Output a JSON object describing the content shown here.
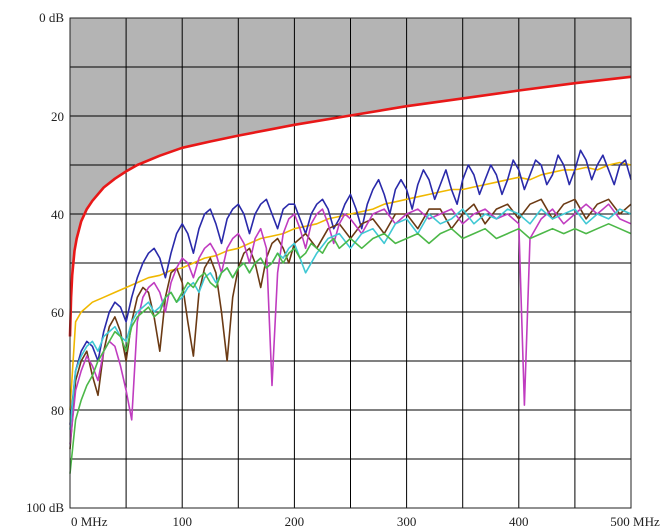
{
  "chart_data": {
    "type": "line",
    "title": "",
    "xlabel": "",
    "ylabel": "",
    "xlim": [
      0,
      500
    ],
    "ylim": [
      0,
      100
    ],
    "y_inverted": true,
    "grid": true,
    "x_ticks": [
      {
        "value": 0,
        "label": "0 MHz"
      },
      {
        "value": 100,
        "label": "100"
      },
      {
        "value": 200,
        "label": "200"
      },
      {
        "value": 300,
        "label": "300"
      },
      {
        "value": 400,
        "label": "400"
      },
      {
        "value": 500,
        "label": "500 MHz"
      }
    ],
    "y_ticks": [
      {
        "value": 0,
        "label": "0 dB"
      },
      {
        "value": 20,
        "label": "20"
      },
      {
        "value": 40,
        "label": "40"
      },
      {
        "value": 60,
        "label": "60"
      },
      {
        "value": 80,
        "label": "80"
      },
      {
        "value": 100,
        "label": "100 dB"
      }
    ],
    "limit_curve": {
      "color": "#e81818",
      "fill_color": "#b4b4b4",
      "x": [
        0,
        1,
        2,
        4,
        6,
        10,
        15,
        20,
        30,
        40,
        50,
        60,
        80,
        100,
        125,
        150,
        175,
        200,
        250,
        300,
        350,
        400,
        450,
        500
      ],
      "y": [
        65,
        57,
        52.5,
        47.5,
        45,
        41.5,
        39,
        37.3,
        34.6,
        32.8,
        31.3,
        30,
        28.1,
        26.5,
        25.2,
        24,
        22.9,
        21.8,
        19.9,
        18,
        16.4,
        14.8,
        13.3,
        12
      ]
    },
    "series": [
      {
        "color": "#f0b800",
        "x": [
          0,
          5,
          10,
          20,
          30,
          40,
          50,
          60,
          70,
          80,
          90,
          100,
          110,
          120,
          130,
          140,
          150,
          160,
          170,
          180,
          190,
          200,
          210,
          220,
          230,
          240,
          250,
          260,
          270,
          280,
          290,
          300,
          310,
          320,
          330,
          340,
          350,
          360,
          370,
          380,
          390,
          400,
          410,
          420,
          430,
          440,
          450,
          460,
          470,
          480,
          490,
          500
        ],
        "y": [
          80,
          62,
          60,
          58,
          57,
          56,
          55,
          54,
          53,
          52.5,
          51.5,
          51,
          50,
          49,
          48.5,
          47.5,
          47,
          46,
          45,
          44.5,
          44,
          43,
          42.5,
          42,
          41,
          40.5,
          40,
          39.5,
          39,
          38,
          37.5,
          37,
          36.5,
          36,
          35.5,
          35,
          35,
          34.5,
          34,
          33.5,
          33,
          32.5,
          33,
          32,
          31.5,
          31,
          31,
          30.5,
          31,
          30,
          29.5,
          30
        ]
      },
      {
        "color": "#2a2aaa",
        "x": [
          0,
          5,
          10,
          15,
          20,
          25,
          30,
          35,
          40,
          45,
          50,
          55,
          60,
          65,
          70,
          75,
          80,
          85,
          90,
          95,
          100,
          105,
          110,
          115,
          120,
          125,
          130,
          135,
          140,
          145,
          150,
          155,
          160,
          165,
          170,
          175,
          180,
          185,
          190,
          195,
          200,
          205,
          210,
          215,
          220,
          225,
          230,
          235,
          240,
          245,
          250,
          255,
          260,
          265,
          270,
          275,
          280,
          285,
          290,
          295,
          300,
          305,
          310,
          315,
          320,
          325,
          330,
          335,
          340,
          345,
          350,
          355,
          360,
          365,
          370,
          375,
          380,
          385,
          390,
          395,
          400,
          405,
          410,
          415,
          420,
          425,
          430,
          435,
          440,
          445,
          450,
          455,
          460,
          465,
          470,
          475,
          480,
          485,
          490,
          495,
          500
        ],
        "y": [
          83,
          72,
          68,
          66,
          67,
          70,
          64,
          60,
          58,
          59,
          62,
          57,
          53,
          50,
          48,
          47,
          49,
          53,
          48,
          44,
          42,
          44,
          48,
          43,
          40,
          39,
          42,
          46,
          41,
          39,
          38,
          40,
          44,
          40,
          38,
          37,
          40,
          43,
          39,
          38,
          38,
          41,
          44,
          40,
          38,
          37,
          39,
          43,
          41,
          38,
          36,
          39,
          43,
          38,
          35,
          33,
          36,
          40,
          35,
          33,
          35,
          39,
          34,
          31,
          33,
          37,
          34,
          31,
          35,
          38,
          33,
          30,
          32,
          36,
          33,
          30,
          32,
          36,
          33,
          29,
          31,
          35,
          32,
          29,
          30,
          34,
          32,
          28,
          30,
          34,
          31,
          27,
          29,
          33,
          30,
          28,
          31,
          34,
          30,
          29,
          33
        ]
      },
      {
        "color": "#6b3a14",
        "x": [
          0,
          5,
          10,
          15,
          20,
          25,
          30,
          35,
          40,
          45,
          50,
          55,
          60,
          65,
          70,
          75,
          80,
          85,
          90,
          95,
          100,
          105,
          110,
          115,
          120,
          125,
          130,
          135,
          140,
          145,
          150,
          155,
          160,
          165,
          170,
          175,
          180,
          185,
          190,
          195,
          200,
          210,
          220,
          230,
          240,
          250,
          260,
          270,
          280,
          290,
          300,
          310,
          320,
          330,
          340,
          350,
          360,
          370,
          380,
          390,
          400,
          410,
          420,
          430,
          440,
          450,
          460,
          470,
          480,
          490,
          500
        ],
        "y": [
          88,
          74,
          70,
          68,
          73,
          77,
          68,
          63,
          61,
          64,
          70,
          62,
          57,
          55,
          56,
          61,
          68,
          57,
          52,
          51,
          54,
          62,
          69,
          56,
          51,
          49,
          52,
          60,
          70,
          57,
          51,
          48,
          47,
          50,
          55,
          49,
          46,
          45,
          47,
          50,
          46,
          44,
          47,
          43,
          42,
          45,
          42,
          41,
          44,
          40,
          40,
          43,
          39,
          39,
          43,
          40,
          38,
          42,
          39,
          38,
          41,
          38,
          37,
          41,
          38,
          37,
          41,
          38,
          37,
          40,
          38
        ]
      },
      {
        "color": "#c03cc0",
        "x": [
          0,
          5,
          10,
          15,
          20,
          25,
          30,
          35,
          40,
          45,
          50,
          55,
          60,
          65,
          70,
          75,
          80,
          85,
          90,
          95,
          100,
          105,
          110,
          115,
          120,
          125,
          130,
          135,
          140,
          145,
          150,
          155,
          160,
          165,
          170,
          175,
          180,
          185,
          190,
          195,
          200,
          205,
          210,
          215,
          220,
          225,
          230,
          235,
          240,
          245,
          250,
          260,
          270,
          280,
          290,
          300,
          310,
          320,
          330,
          340,
          350,
          360,
          370,
          380,
          390,
          400,
          405,
          410,
          420,
          430,
          440,
          450,
          460,
          470,
          480,
          490,
          500
        ],
        "y": [
          87,
          76,
          72,
          69,
          71,
          74,
          68,
          66,
          67,
          71,
          76,
          82,
          62,
          57,
          55,
          54,
          56,
          60,
          54,
          51,
          49,
          50,
          53,
          49,
          47,
          46,
          48,
          52,
          47,
          45,
          44,
          46,
          50,
          45,
          43,
          47,
          75,
          52,
          44,
          41,
          40,
          43,
          47,
          42,
          40,
          39,
          42,
          46,
          42,
          40,
          41,
          44,
          40,
          39,
          42,
          40,
          39,
          41,
          40,
          39,
          42,
          40,
          39,
          41,
          40,
          42,
          79,
          45,
          41,
          39,
          42,
          40,
          38,
          40,
          38,
          41,
          42
        ]
      },
      {
        "color": "#40c8d4",
        "x": [
          0,
          5,
          10,
          15,
          20,
          25,
          30,
          35,
          40,
          45,
          50,
          55,
          60,
          65,
          70,
          75,
          80,
          85,
          90,
          95,
          100,
          105,
          110,
          115,
          120,
          125,
          130,
          135,
          140,
          145,
          150,
          155,
          160,
          165,
          170,
          175,
          180,
          185,
          190,
          195,
          200,
          210,
          220,
          230,
          240,
          250,
          260,
          270,
          280,
          290,
          300,
          310,
          320,
          330,
          340,
          350,
          360,
          370,
          380,
          390,
          400,
          410,
          420,
          430,
          440,
          450,
          460,
          470,
          480,
          490,
          500
        ],
        "y": [
          84,
          72,
          69,
          67,
          66,
          68,
          65,
          64,
          63,
          65,
          66,
          62,
          60,
          59,
          58,
          60,
          59,
          57,
          56,
          58,
          57,
          55,
          54,
          56,
          53,
          52,
          54,
          52,
          51,
          53,
          51,
          50,
          52,
          50,
          49,
          51,
          50,
          48,
          49,
          47,
          46,
          52,
          48,
          45,
          44,
          47,
          44,
          43,
          46,
          42,
          41,
          44,
          40,
          42,
          41,
          39,
          42,
          40,
          41,
          39,
          40,
          42,
          39,
          41,
          40,
          39,
          42,
          40,
          41,
          39,
          40
        ]
      },
      {
        "color": "#4cb848",
        "x": [
          0,
          5,
          10,
          15,
          20,
          25,
          30,
          35,
          40,
          45,
          50,
          55,
          60,
          65,
          70,
          75,
          80,
          85,
          90,
          95,
          100,
          105,
          110,
          115,
          120,
          125,
          130,
          135,
          140,
          145,
          150,
          155,
          160,
          165,
          170,
          175,
          180,
          185,
          190,
          195,
          200,
          205,
          210,
          215,
          220,
          225,
          230,
          235,
          240,
          245,
          250,
          260,
          270,
          280,
          290,
          300,
          310,
          320,
          330,
          340,
          350,
          360,
          370,
          380,
          390,
          400,
          410,
          420,
          430,
          440,
          450,
          460,
          470,
          480,
          490,
          500
        ],
        "y": [
          93,
          82,
          78,
          75,
          73,
          70,
          68,
          66,
          64,
          65,
          68,
          63,
          61,
          60,
          59,
          61,
          60,
          57,
          56,
          58,
          56,
          54,
          55,
          53,
          52,
          54,
          55,
          52,
          51,
          53,
          51,
          50,
          52,
          50,
          49,
          51,
          50,
          48,
          50,
          48,
          47,
          49,
          48,
          46,
          47,
          48,
          46,
          45,
          47,
          46,
          45,
          47,
          45,
          44,
          46,
          45,
          44,
          46,
          44,
          43,
          45,
          44,
          43,
          45,
          44,
          43,
          45,
          44,
          43,
          44,
          43,
          44,
          43,
          42,
          43,
          44
        ]
      }
    ]
  }
}
